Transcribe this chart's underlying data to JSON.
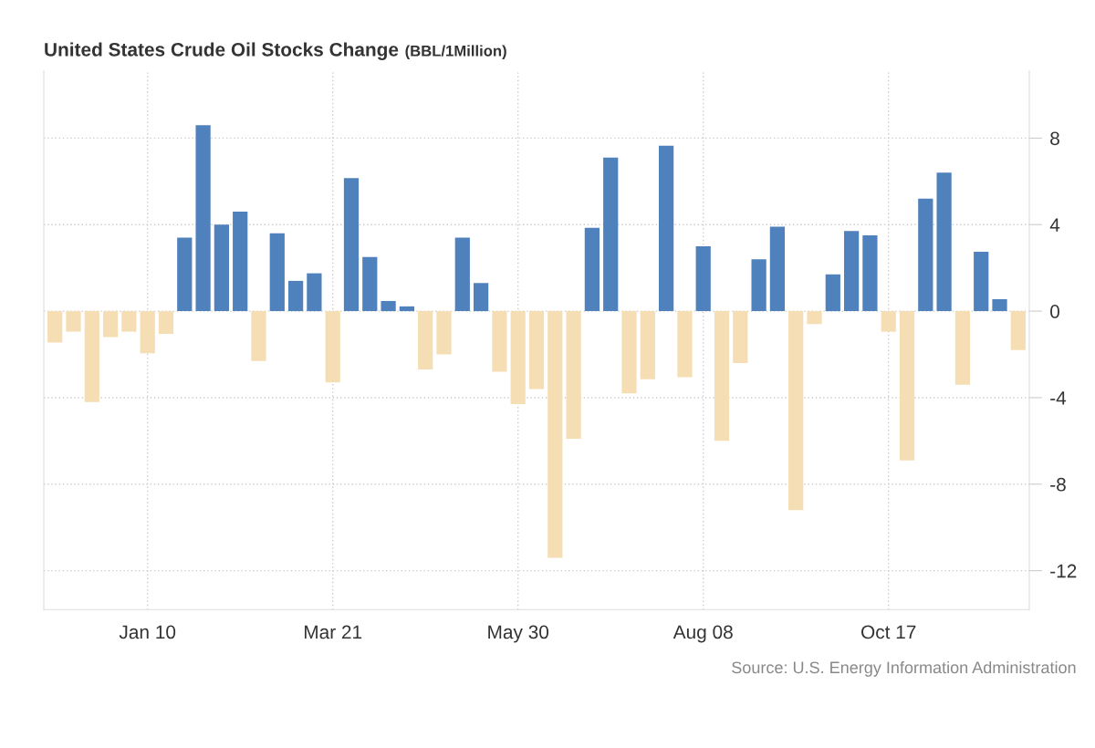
{
  "chart_data": {
    "type": "bar",
    "title": "United States Crude Oil Stocks Change",
    "subtitle": "(BBL/1Million)",
    "categories": [
      null,
      null,
      null,
      null,
      null,
      "Jan 10",
      null,
      null,
      null,
      null,
      null,
      null,
      null,
      null,
      null,
      "Mar 21",
      null,
      null,
      null,
      null,
      null,
      null,
      null,
      null,
      null,
      "May 30",
      null,
      null,
      null,
      null,
      null,
      null,
      null,
      null,
      null,
      "Aug 08",
      null,
      null,
      null,
      null,
      null,
      null,
      null,
      null,
      null,
      "Oct 17",
      null,
      null,
      null,
      null,
      null,
      null,
      null
    ],
    "values": [
      -1.45,
      -0.95,
      -4.2,
      -1.2,
      -0.95,
      -1.95,
      -1.05,
      3.4,
      8.6,
      4.0,
      4.6,
      -2.3,
      3.6,
      1.4,
      1.75,
      -3.3,
      6.15,
      2.5,
      0.47,
      0.22,
      -2.7,
      -2.0,
      3.4,
      1.3,
      -2.8,
      -4.3,
      -3.6,
      -11.4,
      -5.9,
      3.85,
      7.1,
      -3.8,
      -3.15,
      7.65,
      -3.05,
      3.0,
      -6.0,
      -2.4,
      2.4,
      3.9,
      -9.2,
      -0.6,
      1.7,
      3.7,
      3.5,
      -0.95,
      -6.9,
      5.2,
      6.4,
      -3.4,
      2.75,
      0.55,
      -1.8
    ],
    "colors": [
      "#f5deb3",
      "#f5deb3",
      "#f5deb3",
      "#f5deb3",
      "#f5deb3",
      "#f5deb3",
      "#f5deb3",
      "#4f81bd",
      "#4f81bd",
      "#4f81bd",
      "#4f81bd",
      "#f5deb3",
      "#4f81bd",
      "#4f81bd",
      "#4f81bd",
      "#f5deb3",
      "#4f81bd",
      "#4f81bd",
      "#4f81bd",
      "#4f81bd",
      "#f5deb3",
      "#f5deb3",
      "#4f81bd",
      "#4f81bd",
      "#f5deb3",
      "#f5deb3",
      "#f5deb3",
      "#f5deb3",
      "#f5deb3",
      "#4f81bd",
      "#4f81bd",
      "#f5deb3",
      "#f5deb3",
      "#4f81bd",
      "#f5deb3",
      "#4f81bd",
      "#f5deb3",
      "#f5deb3",
      "#4f81bd",
      "#4f81bd",
      "#f5deb3",
      "#f5deb3",
      "#4f81bd",
      "#4f81bd",
      "#4f81bd",
      "#f5deb3",
      "#f5deb3",
      "#4f81bd",
      "#4f81bd",
      "#f5deb3",
      "#4f81bd",
      "#4f81bd",
      "#f5deb3"
    ],
    "ylim": [
      -13.8,
      11.1
    ],
    "yticks": [
      -12,
      -8,
      -4,
      0,
      4,
      8
    ],
    "grid": true,
    "annotations": [
      "Source: U.S. Energy Information Administration"
    ]
  }
}
